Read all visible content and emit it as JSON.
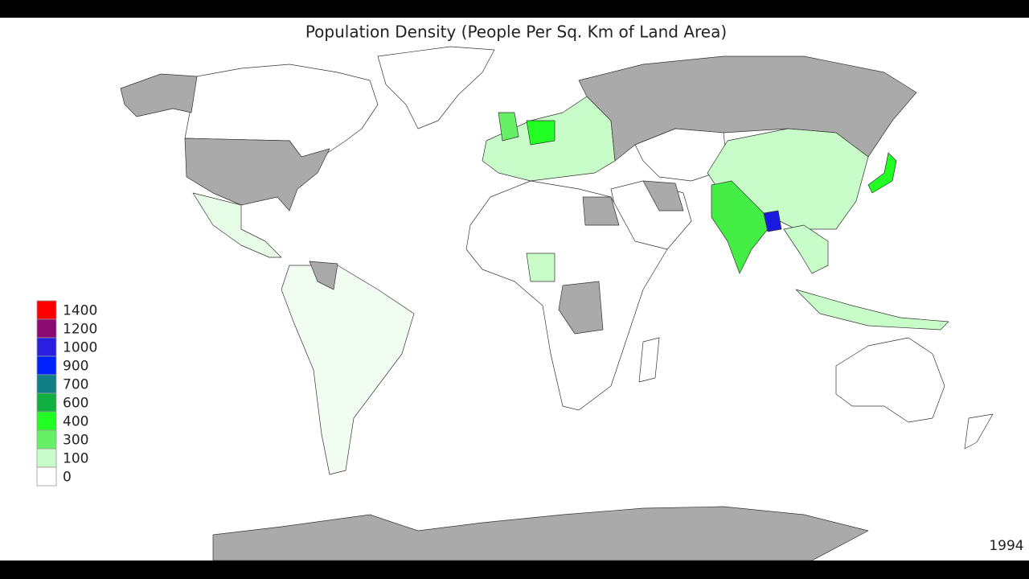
{
  "title": "Population Density (People Per Sq. Km of Land Area)",
  "legend": [
    {
      "value": 1400,
      "color": "#ff0000"
    },
    {
      "value": 1200,
      "color": "#8b0a72"
    },
    {
      "value": 1000,
      "color": "#2a1fe0"
    },
    {
      "value": 900,
      "color": "#0022ff"
    },
    {
      "value": 700,
      "color": "#117f86"
    },
    {
      "value": 600,
      "color": "#10b040"
    },
    {
      "value": 400,
      "color": "#22ff22"
    },
    {
      "value": 300,
      "color": "#66f066"
    },
    {
      "value": 100,
      "color": "#c8fcc8"
    },
    {
      "value": 0,
      "color": "#ffffff"
    }
  ],
  "year": "1994"
}
